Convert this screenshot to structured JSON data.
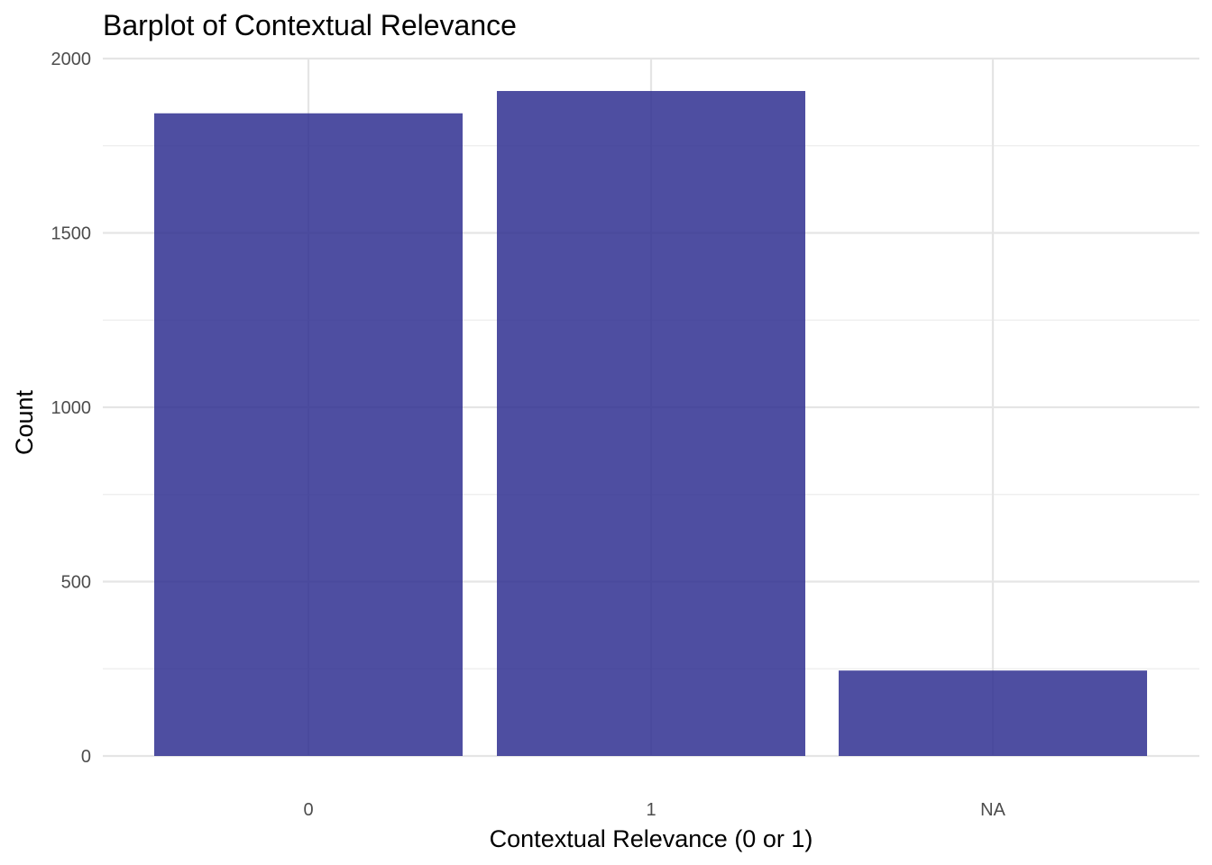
{
  "chart_data": {
    "type": "bar",
    "title": "Barplot of Contextual Relevance",
    "xlabel": "Contextual Relevance (0 or 1)",
    "ylabel": "Count",
    "categories": [
      "0",
      "1",
      "NA"
    ],
    "values": [
      1843,
      1907,
      245
    ],
    "ylim": [
      0,
      2000
    ],
    "yticks": [
      0,
      500,
      1000,
      1500,
      2000
    ],
    "ytick_labels": [
      "0",
      "500",
      "1000",
      "1500",
      "2000"
    ],
    "grid": true,
    "legend": "none",
    "bar_color": "#2f2f91",
    "bar_opacity": 0.85
  }
}
